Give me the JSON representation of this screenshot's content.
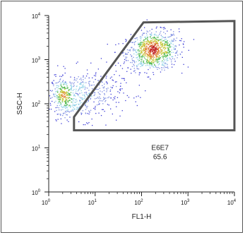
{
  "chart_data": {
    "type": "scatter",
    "plot_kind": "flow-cytometry-density-dot-plot",
    "x_scale": "log",
    "y_scale": "log",
    "xlabel": "FL1-H",
    "ylabel": "SSC-H",
    "xlim": [
      1,
      10000
    ],
    "ylim": [
      1,
      10000
    ],
    "x_ticks": [
      {
        "value": 1,
        "mantissa": "10",
        "exponent": "0"
      },
      {
        "value": 10,
        "mantissa": "10",
        "exponent": "1"
      },
      {
        "value": 100,
        "mantissa": "10",
        "exponent": "2"
      },
      {
        "value": 1000,
        "mantissa": "10",
        "exponent": "3"
      },
      {
        "value": 10000,
        "mantissa": "10",
        "exponent": "4"
      }
    ],
    "y_ticks": [
      {
        "value": 1,
        "mantissa": "10",
        "exponent": "0"
      },
      {
        "value": 10,
        "mantissa": "10",
        "exponent": "1"
      },
      {
        "value": 100,
        "mantissa": "10",
        "exponent": "2"
      },
      {
        "value": 1000,
        "mantissa": "10",
        "exponent": "3"
      },
      {
        "value": 10000,
        "mantissa": "10",
        "exponent": "4"
      }
    ],
    "populations": [
      {
        "center": [
          170,
          1600
        ],
        "spread_log": [
          0.28,
          0.22
        ],
        "count": 900,
        "tilt": 0.1
      },
      {
        "center": [
          2.1,
          150
        ],
        "spread_log": [
          0.13,
          0.2
        ],
        "count": 260,
        "tilt": -0.2
      },
      {
        "center": [
          6,
          160
        ],
        "spread_log": [
          0.4,
          0.28
        ],
        "count": 420,
        "tilt": 0.05
      }
    ],
    "gate": {
      "name": "E6E7",
      "percent": "65.6",
      "vertices": [
        [
          3.5,
          50
        ],
        [
          110,
          7000
        ],
        [
          10000,
          7500
        ],
        [
          10000,
          25
        ],
        [
          3.5,
          25
        ]
      ]
    },
    "density_colors": [
      "#3b3bd6",
      "#7a8ae0",
      "#8fd0e6",
      "#4fb84f",
      "#c8c83a",
      "#e07a2a",
      "#c02020"
    ],
    "gate_color": "#555555",
    "axis_color": "#222222"
  }
}
